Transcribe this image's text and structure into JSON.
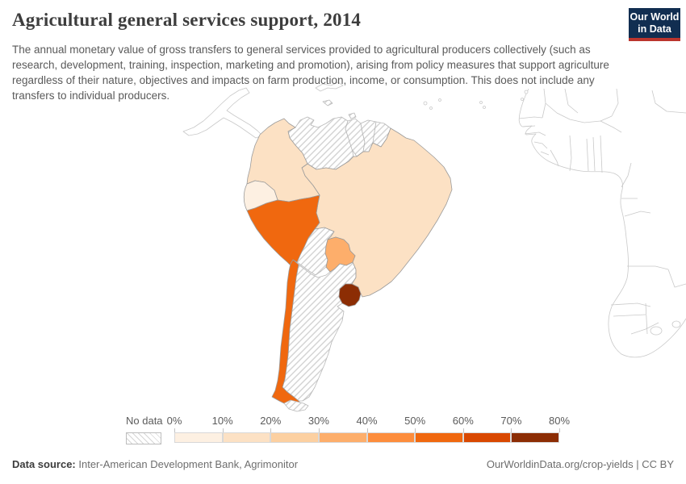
{
  "header": {
    "title": "Agricultural general services support, 2014",
    "subtitle": "The annual monetary value of gross transfers to general services provided to agricultural producers collectively (such as research, development, training, inspection, marketing and promotion), arising from policy measures that support agriculture regardless of their nature, objectives and impacts on farm production, income, or consumption. This does not include any transfers to individual producers.",
    "logo": {
      "line1": "Our World",
      "line2": "in Data",
      "bg_color": "#112e51",
      "accent_color": "#bb352d"
    }
  },
  "legend": {
    "no_data_label": "No data",
    "tick_labels": [
      "0%",
      "10%",
      "20%",
      "30%",
      "40%",
      "50%",
      "60%",
      "70%",
      "80%"
    ],
    "bin_colors": [
      "#fdf0e2",
      "#fce1c4",
      "#fcd0a1",
      "#fdae6b",
      "#fd8d3c",
      "#f0680f",
      "#d94801",
      "#8c2d04"
    ]
  },
  "map_fills": {
    "ecuador": "#fdf0e2",
    "colombia": "#fce1c4",
    "brazil": "#fce1c4",
    "paraguay": "#fdae6b",
    "peru": "#f0680f",
    "chile": "#f0680f",
    "uruguay": "#8c2d04"
  },
  "footer": {
    "source_label": "Data source:",
    "source_value": " Inter-American Development Bank, Agrimonitor",
    "credit": "OurWorldinData.org/crop-yields | CC BY"
  },
  "chart_data": {
    "type": "choropleth",
    "title": "Agricultural general services support, 2014",
    "year": "2014",
    "unit": "%",
    "legend_bins": [
      {
        "range": "0-10%",
        "color": "#fdf0e2"
      },
      {
        "range": "10-20%",
        "color": "#fce1c4"
      },
      {
        "range": "20-30%",
        "color": "#fcd0a1"
      },
      {
        "range": "30-40%",
        "color": "#fdae6b"
      },
      {
        "range": "40-50%",
        "color": "#fd8d3c"
      },
      {
        "range": "50-60%",
        "color": "#f0680f"
      },
      {
        "range": "60-70%",
        "color": "#d94801"
      },
      {
        "range": "70-80%",
        "color": "#8c2d04"
      }
    ],
    "countries": [
      {
        "name": "Ecuador",
        "bin": "0-10%"
      },
      {
        "name": "Colombia",
        "bin": "10-20%"
      },
      {
        "name": "Brazil",
        "bin": "10-20%"
      },
      {
        "name": "Paraguay",
        "bin": "30-40%"
      },
      {
        "name": "Peru",
        "bin": "50-60%"
      },
      {
        "name": "Chile",
        "bin": "50-60%"
      },
      {
        "name": "Uruguay",
        "bin": "70-80%"
      }
    ],
    "no_data_countries": [
      "Venezuela",
      "Guyana",
      "Suriname",
      "French Guiana",
      "Bolivia",
      "Argentina"
    ],
    "context_outlines": [
      "Central America",
      "West and Southern Africa coastline"
    ],
    "legend_position": "bottom"
  }
}
